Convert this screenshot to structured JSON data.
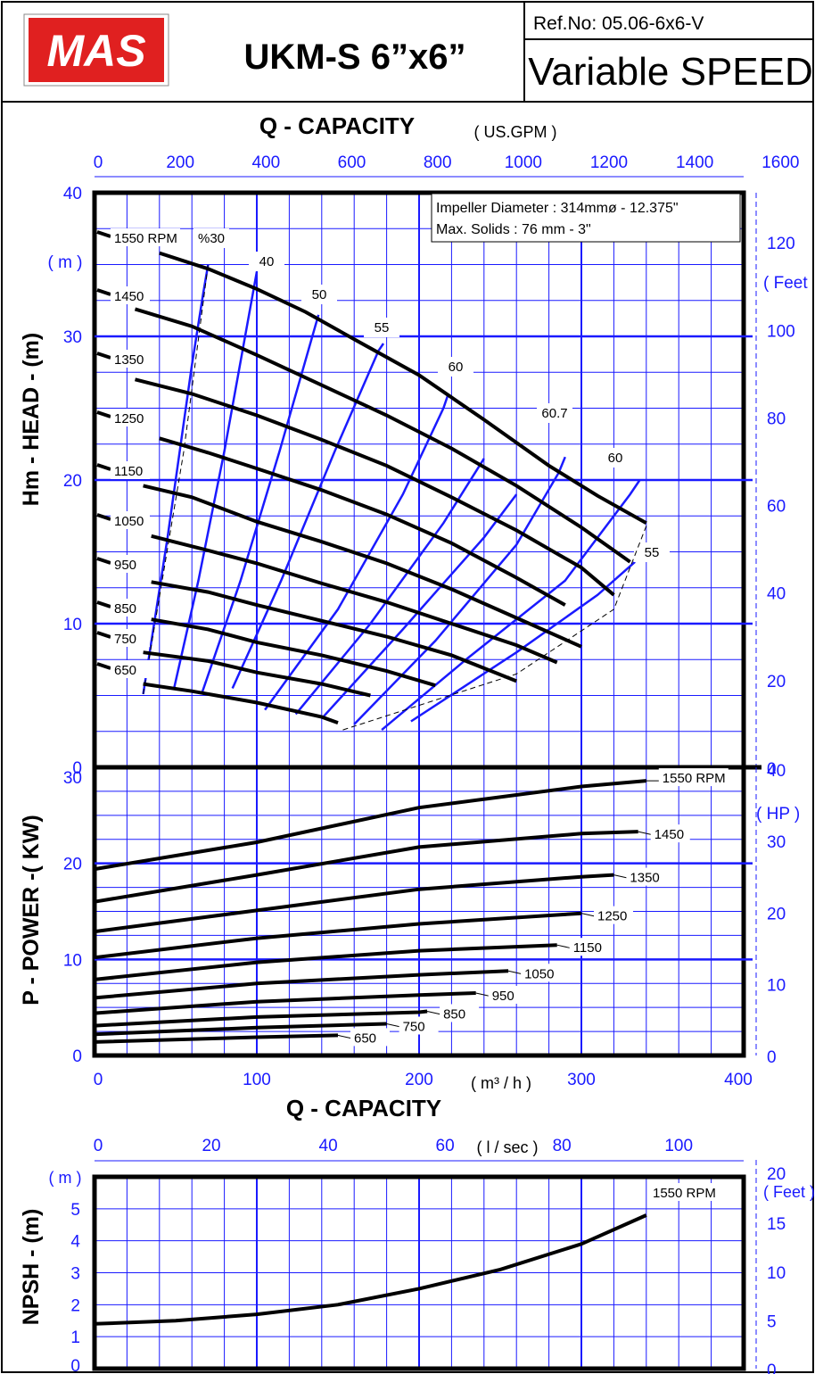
{
  "header": {
    "logo_text": "MAS",
    "model": "UKM-S 6”x6”",
    "ref": "Ref.No: 05.06-6x6-V",
    "speed_mode": "Variable SPEED"
  },
  "colors": {
    "grid": "#1a1aff",
    "curve": "#000000",
    "eff": "#1a1aff",
    "logo_bg": "#e02020"
  },
  "chart_data": [
    {
      "id": "head",
      "type": "line",
      "top_axis_title": "Q - CAPACITY",
      "top_axis_unit": "( US.GPM )",
      "top_ticks": [
        "0",
        "200",
        "400",
        "600",
        "800",
        "1000",
        "1200",
        "1400",
        "1600"
      ],
      "ylabel": "Hm - HEAD - (m)",
      "y_unit_left": "( m )",
      "y_unit_right": "( Feet",
      "left_ticks": [
        "0",
        "10",
        "20",
        "30",
        "40"
      ],
      "right_ticks": [
        "0",
        "20",
        "40",
        "60",
        "80",
        "100",
        "120"
      ],
      "xlim": [
        0,
        400
      ],
      "ylim": [
        0,
        40
      ],
      "info": [
        "Impeller Diameter : 314mmø - 12.375\"",
        "Max. Solids : 76 mm - 3\""
      ],
      "series": [
        {
          "name": "1550 RPM",
          "x": [
            40,
            70,
            100,
            130,
            160,
            200,
            240,
            280,
            310,
            340
          ],
          "y": [
            35.8,
            34.7,
            33.3,
            31.7,
            29.8,
            27.3,
            24.2,
            21.0,
            18.9,
            17.0
          ]
        },
        {
          "name": "1450",
          "x": [
            25,
            60,
            100,
            140,
            180,
            220,
            260,
            300,
            330
          ],
          "y": [
            31.9,
            30.7,
            28.7,
            26.6,
            24.5,
            22.2,
            19.6,
            16.7,
            14.3
          ]
        },
        {
          "name": "1350",
          "x": [
            25,
            60,
            100,
            140,
            180,
            220,
            260,
            300,
            320
          ],
          "y": [
            27.0,
            26.0,
            24.5,
            22.8,
            21.0,
            18.8,
            16.5,
            13.9,
            12.0
          ]
        },
        {
          "name": "1250",
          "x": [
            40,
            70,
            100,
            140,
            180,
            220,
            260,
            290
          ],
          "y": [
            22.9,
            21.9,
            20.8,
            19.3,
            17.6,
            15.6,
            13.2,
            11.3
          ]
        },
        {
          "name": "1150",
          "x": [
            30,
            60,
            100,
            140,
            180,
            220,
            250,
            300
          ],
          "y": [
            19.6,
            18.8,
            17.1,
            15.7,
            14.2,
            12.4,
            10.9,
            8.4
          ]
        },
        {
          "name": "1050",
          "x": [
            35,
            70,
            100,
            140,
            180,
            220,
            260,
            285
          ],
          "y": [
            16.1,
            15.1,
            14.2,
            12.8,
            11.5,
            10.0,
            8.5,
            7.3
          ]
        },
        {
          "name": "950",
          "x": [
            35,
            70,
            100,
            140,
            180,
            220,
            260
          ],
          "y": [
            12.9,
            12.2,
            11.3,
            10.2,
            9.1,
            7.8,
            6.0
          ]
        },
        {
          "name": "850",
          "x": [
            35,
            70,
            100,
            140,
            180,
            210
          ],
          "y": [
            10.3,
            9.6,
            8.7,
            7.8,
            6.7,
            5.7
          ]
        },
        {
          "name": "750",
          "x": [
            30,
            70,
            100,
            140,
            170
          ],
          "y": [
            8.0,
            7.4,
            6.6,
            5.8,
            5.0
          ]
        },
        {
          "name": "650",
          "x": [
            30,
            60,
            100,
            140,
            150
          ],
          "y": [
            5.8,
            5.3,
            4.5,
            3.5,
            3.1
          ]
        }
      ],
      "efficiency": [
        {
          "name": "%30",
          "x": [
            30,
            45,
            60,
            67,
            70
          ],
          "y": [
            5.1,
            16,
            28,
            33,
            35
          ]
        },
        {
          "name": "40",
          "x": [
            49,
            64,
            80,
            96,
            100
          ],
          "y": [
            5.5,
            13,
            22,
            32,
            34.5
          ]
        },
        {
          "name": "50",
          "x": [
            66,
            90,
            114,
            136,
            138
          ],
          "y": [
            5.1,
            13,
            22,
            30.7,
            31.5
          ]
        },
        {
          "name": "55",
          "x": [
            85,
            115,
            148,
            175,
            178
          ],
          "y": [
            5.5,
            13,
            22,
            29,
            29.5
          ]
        },
        {
          "name": "60",
          "x": [
            105,
            150,
            190,
            215,
            218
          ],
          "y": [
            4.0,
            11,
            19,
            25,
            26
          ]
        },
        {
          "name": "",
          "x": [
            124,
            170,
            215,
            240
          ],
          "y": [
            3.7,
            10,
            17,
            21.5
          ]
        },
        {
          "name": "",
          "x": [
            140,
            190,
            240,
            260
          ],
          "y": [
            3.4,
            9.6,
            16,
            19
          ]
        },
        {
          "name": "60.7",
          "x": [
            160,
            210,
            260,
            286,
            290
          ],
          "y": [
            3.0,
            8.8,
            15.5,
            20.5,
            21.6
          ]
        },
        {
          "name": "60",
          "x": [
            177,
            230,
            290,
            330,
            336
          ],
          "y": [
            2.6,
            7.6,
            13,
            19,
            20
          ]
        },
        {
          "name": "55",
          "x": [
            195,
            260,
            310,
            333
          ],
          "y": [
            3.2,
            8.0,
            12,
            14.3
          ]
        }
      ]
    },
    {
      "id": "power",
      "type": "line",
      "ylabel": "P - POWER -( KW)",
      "y_unit_right": "( HP )",
      "left_ticks": [
        "0",
        "10",
        "20",
        "30"
      ],
      "right_ticks": [
        "0",
        "10",
        "20",
        "30",
        "40"
      ],
      "bottom_ticks": [
        "0",
        "100",
        "200",
        "300",
        "400"
      ],
      "bottom_unit": "( m³ / h )",
      "xlabel": "Q - CAPACITY",
      "xlim": [
        0,
        400
      ],
      "ylim": [
        0,
        30
      ],
      "series": [
        {
          "name": "1550 RPM",
          "x": [
            0,
            100,
            200,
            300,
            340
          ],
          "y": [
            19.4,
            22.2,
            25.8,
            28.0,
            28.6
          ]
        },
        {
          "name": "1450",
          "x": [
            0,
            100,
            200,
            300,
            335
          ],
          "y": [
            16.0,
            18.8,
            21.7,
            23.1,
            23.3
          ]
        },
        {
          "name": "1350",
          "x": [
            0,
            100,
            200,
            300,
            320
          ],
          "y": [
            12.9,
            15.1,
            17.3,
            18.6,
            18.8
          ]
        },
        {
          "name": "1250",
          "x": [
            0,
            100,
            200,
            300
          ],
          "y": [
            10.2,
            12.2,
            13.7,
            14.8
          ]
        },
        {
          "name": "1150",
          "x": [
            0,
            100,
            200,
            285
          ],
          "y": [
            7.9,
            9.7,
            10.9,
            11.5
          ]
        },
        {
          "name": "1050",
          "x": [
            0,
            100,
            200,
            255
          ],
          "y": [
            6.0,
            7.5,
            8.4,
            8.8
          ]
        },
        {
          "name": "950",
          "x": [
            0,
            100,
            200,
            235
          ],
          "y": [
            4.4,
            5.6,
            6.3,
            6.5
          ]
        },
        {
          "name": "850",
          "x": [
            0,
            100,
            200,
            205
          ],
          "y": [
            3.1,
            4.0,
            4.5,
            4.6
          ]
        },
        {
          "name": "750",
          "x": [
            0,
            100,
            180
          ],
          "y": [
            2.2,
            2.9,
            3.3
          ]
        },
        {
          "name": "650",
          "x": [
            0,
            100,
            150
          ],
          "y": [
            1.4,
            1.9,
            2.1
          ]
        }
      ]
    },
    {
      "id": "npsh",
      "type": "line",
      "top_axis_unit": "( l / sec )",
      "top_ticks": [
        "0",
        "20",
        "40",
        "60",
        "80",
        "100"
      ],
      "ylabel": "NPSH - (m)",
      "y_unit_left": "( m )",
      "y_unit_right": "( Feet )",
      "left_ticks": [
        "0",
        "1",
        "2",
        "3",
        "4",
        "5"
      ],
      "right_ticks": [
        "0",
        "5",
        "10",
        "15",
        "20"
      ],
      "xlim": [
        0,
        400
      ],
      "ylim": [
        0,
        6
      ],
      "series": [
        {
          "name": "1550 RPM",
          "x": [
            0,
            50,
            100,
            150,
            200,
            250,
            300,
            340
          ],
          "y": [
            1.4,
            1.5,
            1.7,
            2.0,
            2.5,
            3.1,
            3.9,
            4.8
          ]
        }
      ]
    }
  ]
}
